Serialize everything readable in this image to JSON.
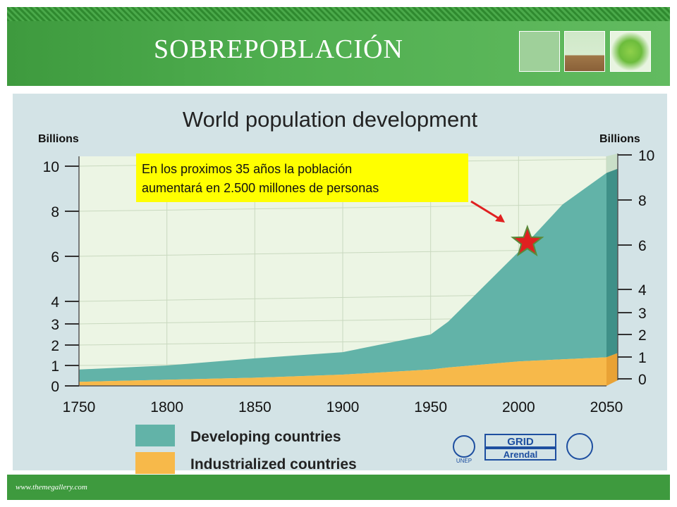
{
  "slide": {
    "title": "SOBREPOBLACIÓN",
    "footer_url": "www.themegallery.com",
    "accent": "#3e9a3e"
  },
  "chart_data": {
    "type": "area",
    "title": "World population development",
    "ylabel_left": "Billions",
    "ylabel_right": "Billions",
    "x": [
      1750,
      1800,
      1850,
      1900,
      1950,
      1960,
      2000,
      2025,
      2050
    ],
    "xticks": [
      "1750",
      "1800",
      "1850",
      "1900",
      "1950",
      "2000",
      "2050"
    ],
    "yticks_left": [
      "0",
      "1",
      "2",
      "3",
      "4",
      "6",
      "8",
      "10"
    ],
    "yticks_right": [
      "0",
      "1",
      "2",
      "3",
      "4",
      "6",
      "8",
      "10"
    ],
    "ylim": [
      0,
      10
    ],
    "series": [
      {
        "name": "Industrialized countries",
        "values": [
          0.2,
          0.3,
          0.4,
          0.55,
          0.8,
          0.9,
          1.2,
          1.3,
          1.4
        ],
        "color": "#f7b94a"
      },
      {
        "name": "Developing countries",
        "values": [
          0.6,
          0.7,
          0.95,
          1.1,
          1.7,
          2.2,
          5.0,
          7.0,
          8.3
        ],
        "color": "#62b3a8"
      }
    ],
    "annotation": {
      "text_line1": "En los proximos 35 años la población",
      "text_line2": "aumentará en 2.500 millones de personas",
      "target_year": 2005,
      "target_value": 6.5
    },
    "logos": [
      "UNEP",
      "GRID",
      "Arendal"
    ]
  }
}
